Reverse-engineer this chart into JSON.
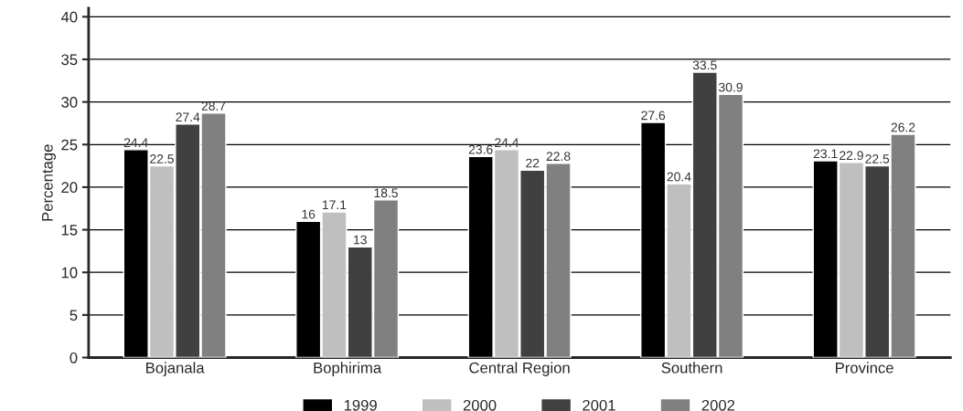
{
  "chart_data": {
    "type": "bar",
    "ylabel": "Percentage",
    "categories": [
      "Bojanala",
      "Bophirima",
      "Central Region",
      "Southern",
      "Province"
    ],
    "series": [
      {
        "name": "1999",
        "color": "#000000",
        "values": [
          24.4,
          16,
          23.6,
          27.6,
          23.1
        ]
      },
      {
        "name": "2000",
        "color": "#bfbfbf",
        "values": [
          22.5,
          17.1,
          24.4,
          20.4,
          22.9
        ]
      },
      {
        "name": "2001",
        "color": "#404040",
        "values": [
          27.4,
          13,
          22,
          33.5,
          22.5
        ]
      },
      {
        "name": "2002",
        "color": "#808080",
        "values": [
          28.7,
          18.5,
          22.8,
          30.9,
          26.2
        ]
      }
    ],
    "ylim": [
      0,
      41
    ],
    "yticks": [
      0,
      5,
      10,
      15,
      20,
      25,
      30,
      35,
      40
    ],
    "grid": "y",
    "legend": "bottom",
    "data_labels": true
  }
}
